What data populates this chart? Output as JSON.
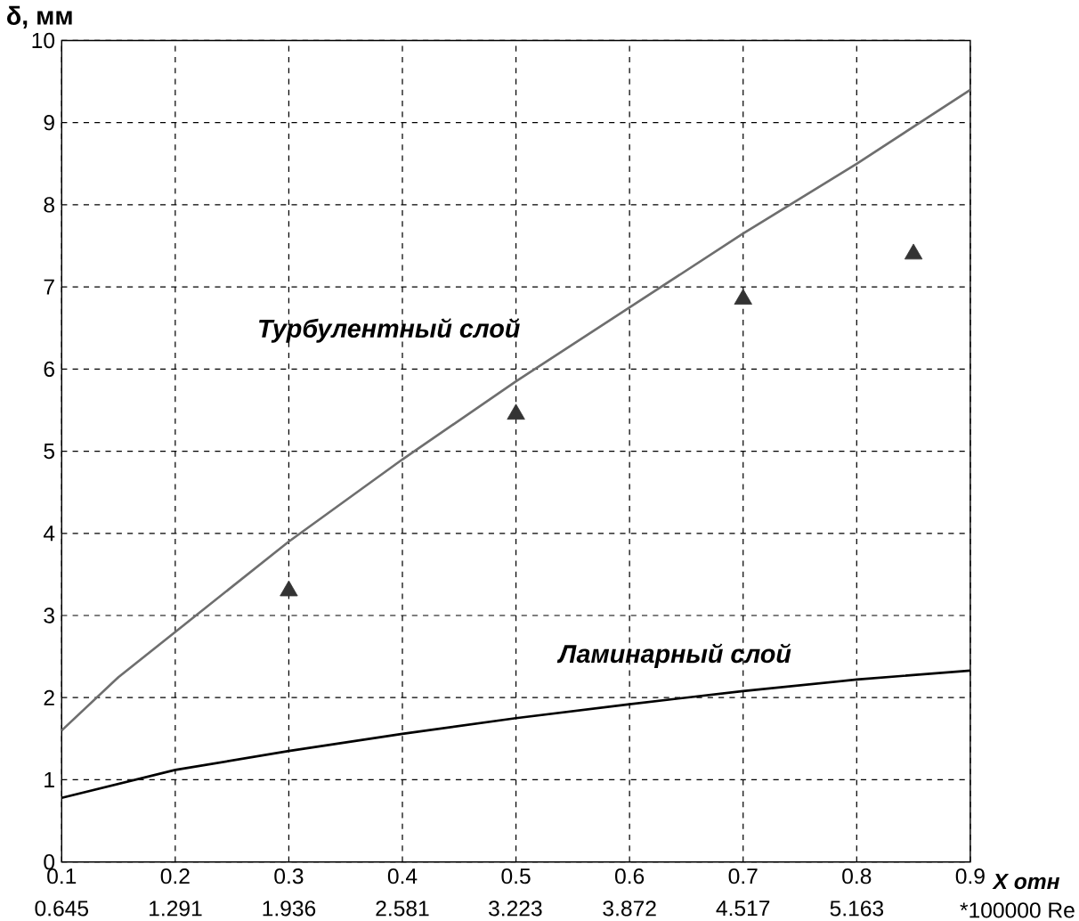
{
  "chart_data": {
    "type": "line",
    "ylabel": "δ, мм",
    "xlabel": "X отн",
    "x2label": "*100000 Re",
    "xlim": [
      0.1,
      0.9
    ],
    "xticks": [
      0.1,
      0.2,
      0.3,
      0.4,
      0.5,
      0.6,
      0.7,
      0.8,
      0.9
    ],
    "x2lim": [
      0.645,
      5.808
    ],
    "x2ticks": [
      0.645,
      1.291,
      1.936,
      2.581,
      3.223,
      3.872,
      4.517,
      5.163
    ],
    "ylim": [
      0,
      10
    ],
    "yticks": [
      0,
      1,
      2,
      3,
      4,
      5,
      6,
      7,
      8,
      9,
      10
    ],
    "grid": true,
    "series": [
      {
        "color": "#6e6e6e",
        "x": [
          0.1,
          0.15,
          0.2,
          0.3,
          0.4,
          0.5,
          0.6,
          0.7,
          0.8,
          0.9
        ],
        "values": [
          1.6,
          2.25,
          2.8,
          3.9,
          4.9,
          5.85,
          6.75,
          7.65,
          8.5,
          9.4
        ]
      },
      {
        "color": "#000000",
        "x": [
          0.1,
          0.2,
          0.3,
          0.4,
          0.5,
          0.6,
          0.7,
          0.8,
          0.9
        ],
        "values": [
          0.78,
          1.12,
          1.35,
          1.56,
          1.75,
          1.92,
          2.08,
          2.22,
          2.33
        ]
      },
      {
        "type": "scatter",
        "marker": "triangle",
        "color": "#333333",
        "x": [
          0.3,
          0.5,
          0.7,
          0.85
        ],
        "values": [
          3.3,
          5.45,
          6.85,
          7.4
        ]
      }
    ],
    "annotations": [
      "Турбулентный слой",
      "Ламинарный слой"
    ]
  }
}
